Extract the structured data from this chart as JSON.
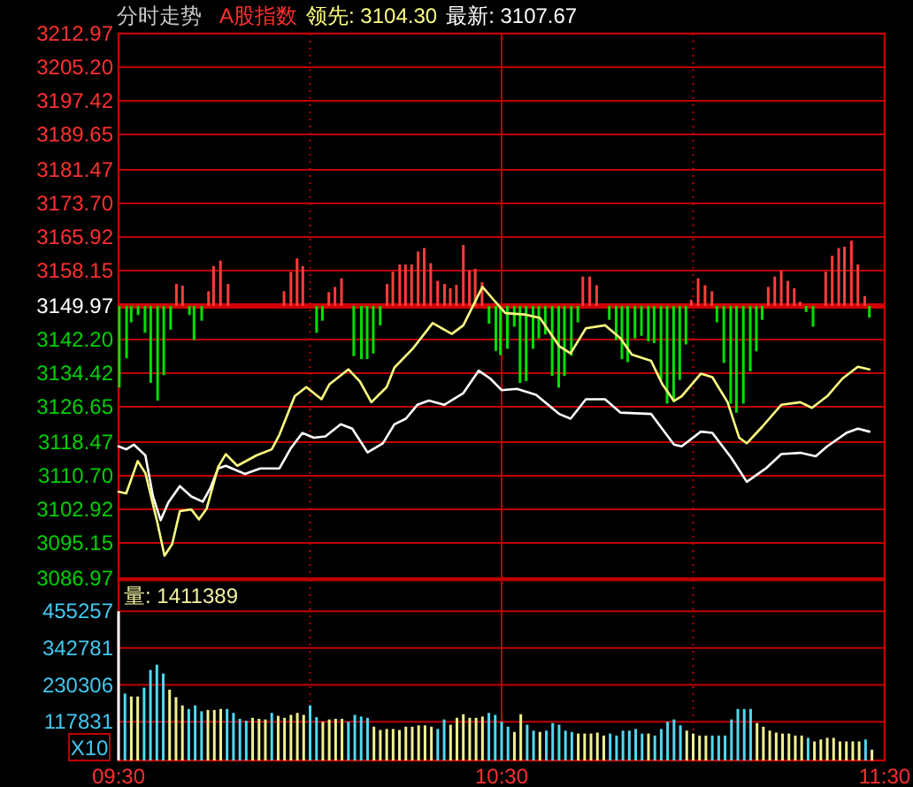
{
  "chart_data": [
    {
      "type": "line",
      "title": "分时走势",
      "annotations": [
        "A股指数",
        "领先: 3104.30",
        "最新: 3107.67"
      ],
      "xlim": [
        9.5,
        11.5
      ],
      "xticks": [
        9.5,
        10,
        10.5,
        11,
        11.5
      ],
      "ylim": [
        3086.97,
        3212.97
      ],
      "yticks": [
        3086.97,
        3095.15,
        3102.92,
        {
          "value": 3110.7,
          "label": "3110.70"
        },
        3118.47,
        3126.65,
        3134.42,
        {
          "value": 3142.2,
          "label": "3142.20"
        },
        3149.97,
        3158.15,
        3165.92,
        {
          "value": 3173.7,
          "label": "3173.70"
        },
        3181.47,
        3189.65,
        3197.42,
        {
          "value": 3205.2,
          "label": "3205.20"
        },
        3212.97
      ],
      "grid": true,
      "tick_labels": "y",
      "ref_lines": [
        {
          "axis": "y",
          "value": 3149.97,
          "color": "#d00000"
        }
      ],
      "series": [
        {
          "type": "bar",
          "color": "#ff3c3c",
          "x": [
            9.651,
            9.667,
            9.735,
            9.748,
            9.766,
            9.786,
            9.932,
            9.95,
            9.966,
            9.981,
            10.049,
            10.065,
            10.082,
            10.201,
            10.216,
            10.234,
            10.249,
            10.265,
            10.282,
            10.298,
            10.315,
            10.333,
            10.351,
            10.366,
            10.382,
            10.4,
            10.416,
            10.431,
            10.449,
            10.712,
            10.73,
            10.748,
            10.995,
            11.013,
            11.031,
            11.049,
            11.196,
            11.213,
            11.23,
            11.247,
            11.264,
            11.279,
            11.346,
            11.363,
            11.38,
            11.395,
            11.413,
            11.43,
            11.448
          ],
          "values": [
            5.1,
            4.7,
            3.4,
            9.2,
            10.5,
            5.1,
            3.4,
            7.9,
            11.0,
            9.2,
            3.2,
            4.4,
            6.4,
            5.1,
            7.9,
            9.6,
            9.6,
            9.6,
            12.6,
            13.4,
            9.9,
            5.8,
            5.1,
            4.1,
            4.9,
            14.1,
            8.2,
            8.6,
            5.5,
            6.8,
            6.8,
            4.8,
            1.4,
            6.4,
            4.8,
            3.4,
            4.4,
            6.8,
            8.2,
            5.8,
            4.1,
            1.0,
            7.9,
            11.6,
            13.4,
            13.7,
            15.1,
            9.6,
            2.3
          ],
          "base": [
            3149.97,
            3149.97,
            3149.97,
            3149.97,
            3149.97,
            3149.97,
            3149.97,
            3149.97,
            3149.97,
            3149.97,
            3149.97,
            3149.97,
            3149.97,
            3149.97,
            3149.97,
            3149.97,
            3149.97,
            3149.97,
            3149.97,
            3149.97,
            3149.97,
            3149.97,
            3149.97,
            3149.97,
            3149.97,
            3149.97,
            3149.97,
            3149.97,
            3149.97,
            3149.97,
            3149.97,
            3149.97,
            3149.97,
            3149.97,
            3149.97,
            3149.97,
            3149.97,
            3149.97,
            3149.97,
            3149.97,
            3149.97,
            3149.97,
            3149.97,
            3149.97,
            3149.97,
            3149.97,
            3149.97,
            3149.97,
            3149.97
          ]
        },
        {
          "type": "bar",
          "color": "#00e000",
          "x": [
            9.502,
            9.521,
            9.533,
            9.551,
            9.569,
            9.584,
            9.602,
            9.618,
            9.636,
            9.685,
            9.697,
            9.717,
            10.017,
            10.032,
            10.114,
            10.134,
            10.149,
            10.165,
            10.183,
            10.467,
            10.485,
            10.497,
            10.515,
            10.533,
            10.548,
            10.564,
            10.582,
            10.597,
            10.614,
            10.632,
            10.649,
            10.664,
            10.682,
            10.699,
            10.781,
            10.799,
            10.814,
            10.829,
            10.848,
            10.865,
            10.883,
            10.898,
            10.916,
            10.932,
            10.949,
            10.965,
            10.981,
            11.062,
            11.08,
            11.098,
            11.113,
            11.131,
            11.149,
            11.165,
            11.18,
            11.295,
            11.313,
            11.46
          ],
          "values": [
            -18.9,
            -12.1,
            -3.8,
            -2.1,
            -6.2,
            -17.8,
            -21.9,
            -16.0,
            -5.5,
            -2.1,
            -7.9,
            -3.4,
            -6.2,
            -3.4,
            -11.6,
            -12.3,
            -12.3,
            -11.0,
            -4.5,
            -4.1,
            -10.4,
            -11.4,
            -9.9,
            -4.8,
            -17.8,
            -17.4,
            -9.9,
            -7.5,
            -6.6,
            -16.2,
            -18.9,
            -16.2,
            -11.5,
            -3.8,
            -3.2,
            -7.9,
            -12.3,
            -13.0,
            -7.5,
            -6.9,
            -8.2,
            -8.6,
            -17.1,
            -22.6,
            -22.2,
            -17.1,
            -8.9,
            -3.8,
            -13.2,
            -22.6,
            -24.7,
            -22.6,
            -15.1,
            -10.5,
            -3.2,
            -1.4,
            -4.8,
            -2.7
          ],
          "base": [
            3149.97,
            3149.97,
            3149.97,
            3149.97,
            3149.97,
            3149.97,
            3149.97,
            3149.97,
            3149.97,
            3149.97,
            3149.97,
            3149.97,
            3149.97,
            3149.97,
            3149.97,
            3149.97,
            3149.97,
            3149.97,
            3149.97,
            3149.97,
            3149.97,
            3149.97,
            3149.97,
            3149.97,
            3149.97,
            3149.97,
            3149.97,
            3149.97,
            3149.97,
            3149.97,
            3149.97,
            3149.97,
            3149.97,
            3149.97,
            3149.97,
            3149.97,
            3149.97,
            3149.97,
            3149.97,
            3149.97,
            3149.97,
            3149.97,
            3149.97,
            3149.97,
            3149.97,
            3149.97,
            3149.97,
            3149.97,
            3149.97,
            3149.97,
            3149.97,
            3149.97,
            3149.97,
            3149.97,
            3149.97,
            3149.97,
            3149.97,
            3149.97
          ]
        },
        {
          "color": "#ffffff",
          "x": [
            9.5,
            9.52,
            9.54,
            9.57,
            9.59,
            9.61,
            9.63,
            9.66,
            9.69,
            9.72,
            9.74,
            9.76,
            9.78,
            9.83,
            9.87,
            9.92,
            9.95,
            9.98,
            10.01,
            10.04,
            10.08,
            10.11,
            10.15,
            10.19,
            10.22,
            10.25,
            10.28,
            10.31,
            10.35,
            10.4,
            10.44,
            10.47,
            10.5,
            10.54,
            10.59,
            10.65,
            10.68,
            10.72,
            10.77,
            10.81,
            10.89,
            10.95,
            10.97,
            11.02,
            11.05,
            11.1,
            11.14,
            11.19,
            11.23,
            11.28,
            11.32,
            11.35,
            11.4,
            11.43,
            11.46
          ],
          "values": [
            3117.5,
            3116.8,
            3117.9,
            3115.4,
            3105.9,
            3100.4,
            3104.5,
            3108.3,
            3105.9,
            3104.7,
            3107.9,
            3112.4,
            3113.0,
            3111.1,
            3112.4,
            3112.4,
            3117.1,
            3120.6,
            3119.5,
            3119.8,
            3122.6,
            3121.6,
            3116.1,
            3118.2,
            3122.6,
            3123.9,
            3127.1,
            3128.1,
            3127.1,
            3129.8,
            3135.0,
            3133.2,
            3130.5,
            3130.8,
            3129.4,
            3125.0,
            3123.9,
            3128.4,
            3128.4,
            3125.3,
            3125.0,
            3117.9,
            3117.5,
            3120.9,
            3120.6,
            3114.8,
            3109.3,
            3112.4,
            3115.7,
            3116.0,
            3115.2,
            3117.5,
            3120.6,
            3121.6,
            3120.9
          ]
        },
        {
          "color": "#ffff80",
          "x": [
            9.5,
            9.52,
            9.55,
            9.57,
            9.6,
            9.62,
            9.64,
            9.66,
            9.69,
            9.71,
            9.73,
            9.76,
            9.78,
            9.81,
            9.86,
            9.9,
            9.92,
            9.96,
            9.99,
            10.03,
            10.05,
            10.1,
            10.13,
            10.16,
            10.2,
            10.22,
            10.27,
            10.32,
            10.37,
            10.4,
            10.45,
            10.48,
            10.51,
            10.56,
            10.6,
            10.65,
            10.68,
            10.72,
            10.77,
            10.81,
            10.84,
            10.89,
            10.92,
            10.95,
            10.97,
            11.02,
            11.05,
            11.09,
            11.12,
            11.14,
            11.18,
            11.23,
            11.28,
            11.31,
            11.35,
            11.39,
            11.43,
            11.46
          ],
          "values": [
            3107.0,
            3106.6,
            3114.1,
            3111.3,
            3100.4,
            3092.2,
            3094.9,
            3102.5,
            3102.9,
            3100.6,
            3103.1,
            3112.7,
            3115.7,
            3113.0,
            3115.4,
            3116.8,
            3120.2,
            3129.1,
            3131.2,
            3128.4,
            3131.8,
            3135.3,
            3132.5,
            3127.7,
            3131.2,
            3135.7,
            3140.3,
            3146.0,
            3143.5,
            3145.5,
            3154.4,
            3151.3,
            3148.3,
            3148.0,
            3147.2,
            3140.7,
            3139.0,
            3144.8,
            3145.5,
            3142.5,
            3138.7,
            3137.3,
            3131.8,
            3128.0,
            3129.1,
            3134.3,
            3133.5,
            3127.7,
            3119.5,
            3118.2,
            3122.0,
            3127.1,
            3127.7,
            3126.4,
            3129.1,
            3133.2,
            3135.9,
            3135.3
          ]
        }
      ]
    },
    {
      "type": "bar",
      "title": "量: 1411389",
      "annotations": [
        "X10"
      ],
      "xlim": [
        9.5,
        11.5
      ],
      "xticks": [
        {
          "value": 9.5,
          "label": "09:30"
        },
        {
          "value": 10,
          "label": null
        },
        {
          "value": 10.5,
          "label": "10:30"
        },
        {
          "value": 11,
          "label": null
        },
        {
          "value": 11.5,
          "label": "11:30"
        }
      ],
      "ylim": [
        0,
        550000
      ],
      "yticks": [
        117831,
        230306,
        342781,
        455257
      ],
      "grid": true,
      "x": [
        9.5,
        9.5167,
        9.5333,
        9.55,
        9.5667,
        9.5833,
        9.6,
        9.6167,
        9.6333,
        9.65,
        9.6667,
        9.6833,
        9.7,
        9.7167,
        9.7333,
        9.75,
        9.7667,
        9.7833,
        9.8,
        9.8167,
        9.8333,
        9.85,
        9.8667,
        9.8833,
        9.9,
        9.9167,
        9.9333,
        9.95,
        9.9667,
        9.9833,
        10,
        10.0167,
        10.0333,
        10.05,
        10.0667,
        10.0833,
        10.1,
        10.1167,
        10.1333,
        10.15,
        10.1667,
        10.1833,
        10.2,
        10.2167,
        10.2333,
        10.25,
        10.2667,
        10.2833,
        10.3,
        10.3167,
        10.3333,
        10.35,
        10.3667,
        10.3833,
        10.4,
        10.4167,
        10.4333,
        10.45,
        10.4667,
        10.4833,
        10.5,
        10.5167,
        10.5333,
        10.55,
        10.5667,
        10.5833,
        10.6,
        10.6167,
        10.6333,
        10.65,
        10.6667,
        10.6833,
        10.7,
        10.7167,
        10.7333,
        10.75,
        10.7667,
        10.7833,
        10.8,
        10.8167,
        10.8333,
        10.85,
        10.8667,
        10.8833,
        10.9,
        10.9167,
        10.9333,
        10.95,
        10.9667,
        10.9833,
        11,
        11.0167,
        11.0333,
        11.05,
        11.0667,
        11.0833,
        11.1,
        11.1167,
        11.1333,
        11.15,
        11.1667,
        11.1833,
        11.2,
        11.2167,
        11.2333,
        11.25,
        11.2667,
        11.2833,
        11.3,
        11.3167,
        11.3333,
        11.35,
        11.3667,
        11.3833,
        11.4,
        11.4167,
        11.4333,
        11.45,
        11.4667
      ],
      "values": [
        455000,
        204000,
        195000,
        195000,
        222000,
        276000,
        292000,
        265000,
        216000,
        193000,
        168000,
        157000,
        168000,
        150000,
        154000,
        154000,
        157000,
        157000,
        145000,
        127000,
        121000,
        130000,
        127000,
        125000,
        145000,
        136000,
        130000,
        139000,
        145000,
        139000,
        168000,
        132000,
        118000,
        125000,
        127000,
        127000,
        118000,
        139000,
        134000,
        130000,
        103000,
        93000,
        96000,
        96000,
        93000,
        103000,
        103000,
        107000,
        107000,
        103000,
        96000,
        125000,
        109000,
        130000,
        141000,
        130000,
        130000,
        134000,
        145000,
        139000,
        118000,
        103000,
        87000,
        141000,
        109000,
        91000,
        87000,
        91000,
        114000,
        109000,
        91000,
        87000,
        82000,
        82000,
        82000,
        85000,
        76000,
        82000,
        76000,
        91000,
        91000,
        96000,
        82000,
        82000,
        76000,
        96000,
        118000,
        125000,
        107000,
        91000,
        82000,
        76000,
        76000,
        76000,
        76000,
        76000,
        125000,
        157000,
        157000,
        157000,
        114000,
        103000,
        91000,
        85000,
        82000,
        82000,
        76000,
        76000,
        69000,
        58000,
        64000,
        69000,
        69000,
        58000,
        58000,
        58000,
        58000,
        64000,
        33000
      ],
      "colors": [
        "#ffffff",
        "#50d8f0",
        "#f0f090",
        "#f0f090",
        "#50d8f0",
        "#50d8f0",
        "#50d8f0",
        "#50d8f0",
        "#f0f090",
        "#f0f090",
        "#f0f090",
        "#50d8f0",
        "#50d8f0",
        "#50d8f0",
        "#f0f090",
        "#f0f090",
        "#f0f090",
        "#50d8f0",
        "#50d8f0",
        "#50d8f0",
        "#50d8f0",
        "#f0f090",
        "#f0f090",
        "#f0f090",
        "#50d8f0",
        "#f0f090",
        "#f0f090",
        "#f0f090",
        "#f0f090",
        "#f0f090",
        "#50d8f0",
        "#50d8f0",
        "#f0f090",
        "#f0f090",
        "#f0f090",
        "#f0f090",
        "#50d8f0",
        "#50d8f0",
        "#50d8f0",
        "#50d8f0",
        "#f0f090",
        "#f0f090",
        "#f0f090",
        "#f0f090",
        "#f0f090",
        "#f0f090",
        "#f0f090",
        "#f0f090",
        "#f0f090",
        "#f0f090",
        "#50d8f0",
        "#50d8f0",
        "#f0f090",
        "#f0f090",
        "#f0f090",
        "#f0f090",
        "#f0f090",
        "#f0f090",
        "#50d8f0",
        "#50d8f0",
        "#50d8f0",
        "#50d8f0",
        "#f0f090",
        "#f0f090",
        "#50d8f0",
        "#50d8f0",
        "#f0f090",
        "#50d8f0",
        "#50d8f0",
        "#50d8f0",
        "#50d8f0",
        "#50d8f0",
        "#f0f090",
        "#f0f090",
        "#f0f090",
        "#f0f090",
        "#f0f090",
        "#50d8f0",
        "#50d8f0",
        "#50d8f0",
        "#50d8f0",
        "#50d8f0",
        "#50d8f0",
        "#f0f090",
        "#50d8f0",
        "#50d8f0",
        "#50d8f0",
        "#50d8f0",
        "#50d8f0",
        "#f0f090",
        "#f0f090",
        "#f0f090",
        "#f0f090",
        "#50d8f0",
        "#50d8f0",
        "#50d8f0",
        "#50d8f0",
        "#50d8f0",
        "#50d8f0",
        "#50d8f0",
        "#f0f090",
        "#f0f090",
        "#f0f090",
        "#f0f090",
        "#f0f090",
        "#f0f090",
        "#f0f090",
        "#f0f090",
        "#50d8f0",
        "#f0f090",
        "#f0f090",
        "#f0f090",
        "#f0f090",
        "#f0f090",
        "#f0f090",
        "#f0f090",
        "#f0f090",
        "#50d8f0",
        "#f0f090"
      ]
    }
  ]
}
